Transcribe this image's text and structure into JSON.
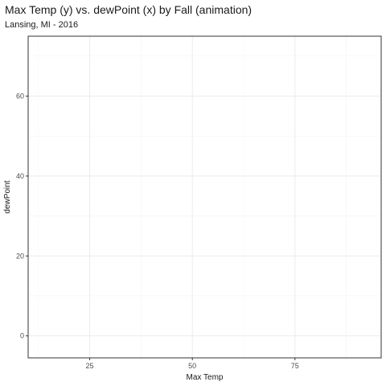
{
  "chart_data": {
    "type": "scatter",
    "title": "Max Temp (y) vs. dewPoint (x) by Fall (animation)",
    "subtitle": "Lansing, MI - 2016",
    "xlabel": "Max Temp",
    "ylabel": "dewPoint",
    "xlim": [
      10,
      96
    ],
    "ylim": [
      -5.5,
      75
    ],
    "x_ticks": [
      25,
      50,
      75
    ],
    "y_ticks": [
      0,
      20,
      40,
      60
    ],
    "grid": true,
    "series": [
      {
        "x": [],
        "y": []
      }
    ],
    "colors": {
      "grid_major": "#ebebeb",
      "grid_minor": "#f5f5f5",
      "panel_border": "#333333",
      "tick_text": "#4d4d4d"
    }
  }
}
